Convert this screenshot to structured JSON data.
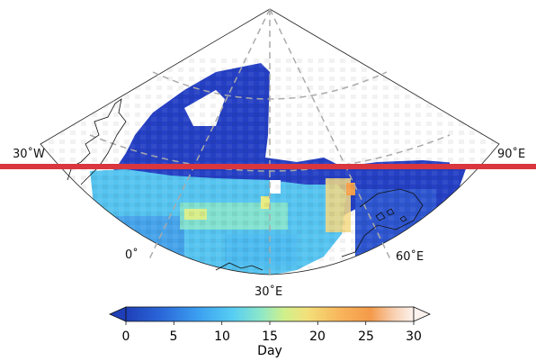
{
  "map": {
    "projection": "polar stereographic sector",
    "lon_labels": {
      "w30": "30˚W",
      "e90": "90˚E",
      "p0": "0˚",
      "e60": "60˚E",
      "e30": "30˚E"
    },
    "gridline_style": "dashed grey",
    "highlight_line_color": "#d9363e"
  },
  "colorbar": {
    "label": "Day",
    "min": 0,
    "max": 30,
    "extend": "both",
    "ticks": [
      "0",
      "5",
      "10",
      "15",
      "20",
      "25",
      "30"
    ],
    "colormap": [
      "#1f3fb8",
      "#2a66d8",
      "#3c9ff0",
      "#56cdf3",
      "#8ee8c8",
      "#d0f08c",
      "#f3e07a",
      "#f8b35a",
      "#f49a4a",
      "#f8cfb0",
      "#fdf3ee"
    ]
  },
  "field_description": {
    "north_band_color": "#2540c4",
    "south_band_color": "#56c4f0"
  }
}
